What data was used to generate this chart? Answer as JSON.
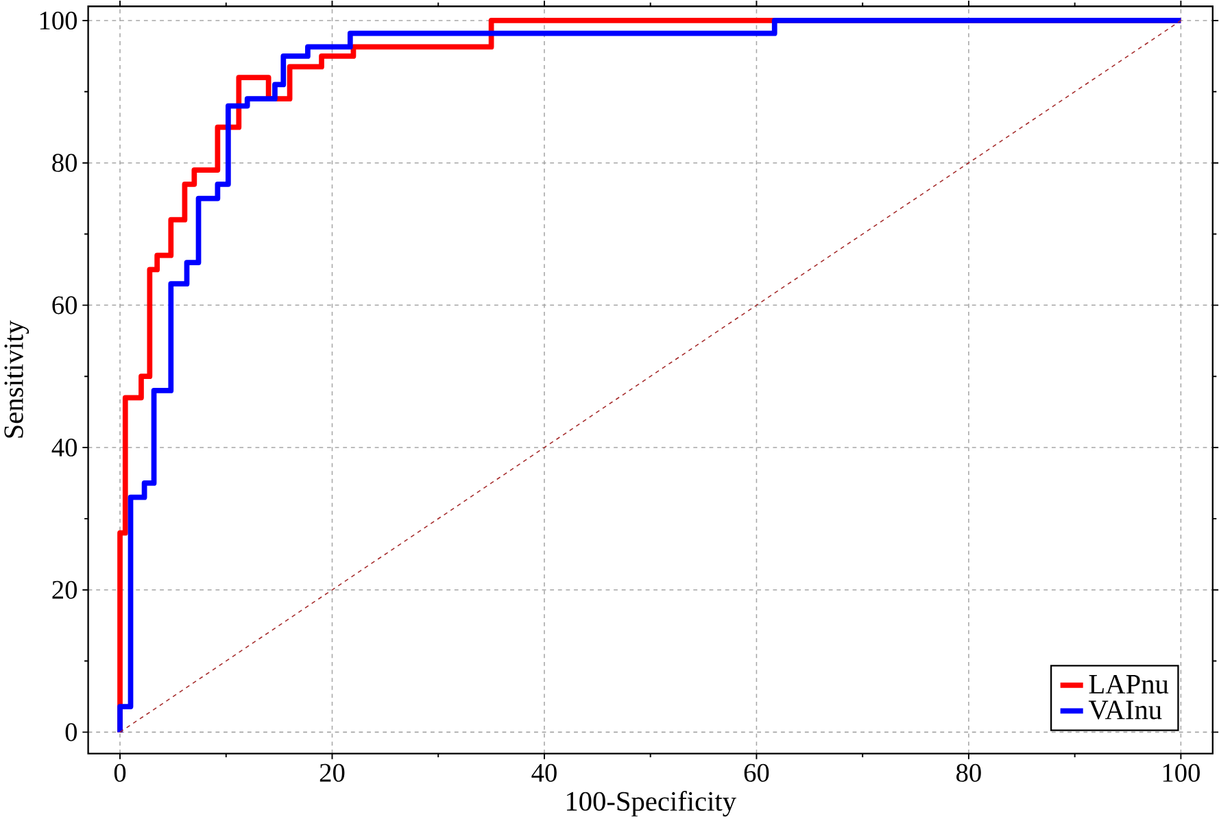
{
  "chart_data": {
    "type": "line",
    "xlabel": "100-Specificity",
    "ylabel": "Sensitivity",
    "xlim": [
      -3,
      103
    ],
    "ylim": [
      -3,
      102
    ],
    "xticks": [
      0,
      20,
      40,
      60,
      80,
      100
    ],
    "yticks": [
      0,
      20,
      40,
      60,
      80,
      100
    ],
    "grid": true,
    "legend": "bottom right",
    "marker": "none",
    "series": [
      {
        "name": "LAPnu",
        "color": "#ff0000",
        "x": [
          0,
          0,
          0.5,
          0.5,
          2,
          2,
          2.8,
          2.8,
          3.5,
          3.5,
          4.8,
          4.8,
          6.1,
          6.1,
          7,
          7,
          8.6,
          8.6,
          9.2,
          9.2,
          11.2,
          11.2,
          14,
          14,
          16,
          16,
          19,
          19,
          22,
          22,
          32,
          32,
          35,
          35,
          100
        ],
        "values": [
          0,
          28,
          28,
          47,
          47,
          50,
          50,
          65,
          65,
          67,
          67,
          72,
          72,
          77,
          77,
          79,
          79,
          79,
          79,
          85,
          85,
          92,
          92,
          89,
          89,
          93.5,
          93.5,
          95,
          95,
          96.3,
          96.3,
          96.3,
          96.3,
          100,
          100
        ]
      },
      {
        "name": "VAInu",
        "color": "#0000ff",
        "x": [
          0,
          0,
          1,
          1,
          2.3,
          2.3,
          3.2,
          3.2,
          4.8,
          4.8,
          6.3,
          6.3,
          7.4,
          7.4,
          9.2,
          9.2,
          10.2,
          10.2,
          12,
          12,
          14.6,
          14.6,
          15.4,
          15.4,
          17.7,
          17.7,
          21.7,
          21.7,
          61.7,
          61.7,
          100
        ],
        "values": [
          0,
          3.6,
          3.6,
          33,
          33,
          35,
          35,
          48,
          48,
          63,
          63,
          66,
          66,
          75,
          75,
          77,
          77,
          88,
          88,
          89,
          89,
          91,
          91,
          95,
          95,
          96.3,
          96.3,
          98.2,
          98.2,
          100,
          100
        ]
      },
      {
        "type": "line",
        "color": "#a52a2a",
        "line_style": "dashed",
        "x": [
          0,
          100
        ],
        "values": [
          0,
          100
        ]
      }
    ]
  }
}
